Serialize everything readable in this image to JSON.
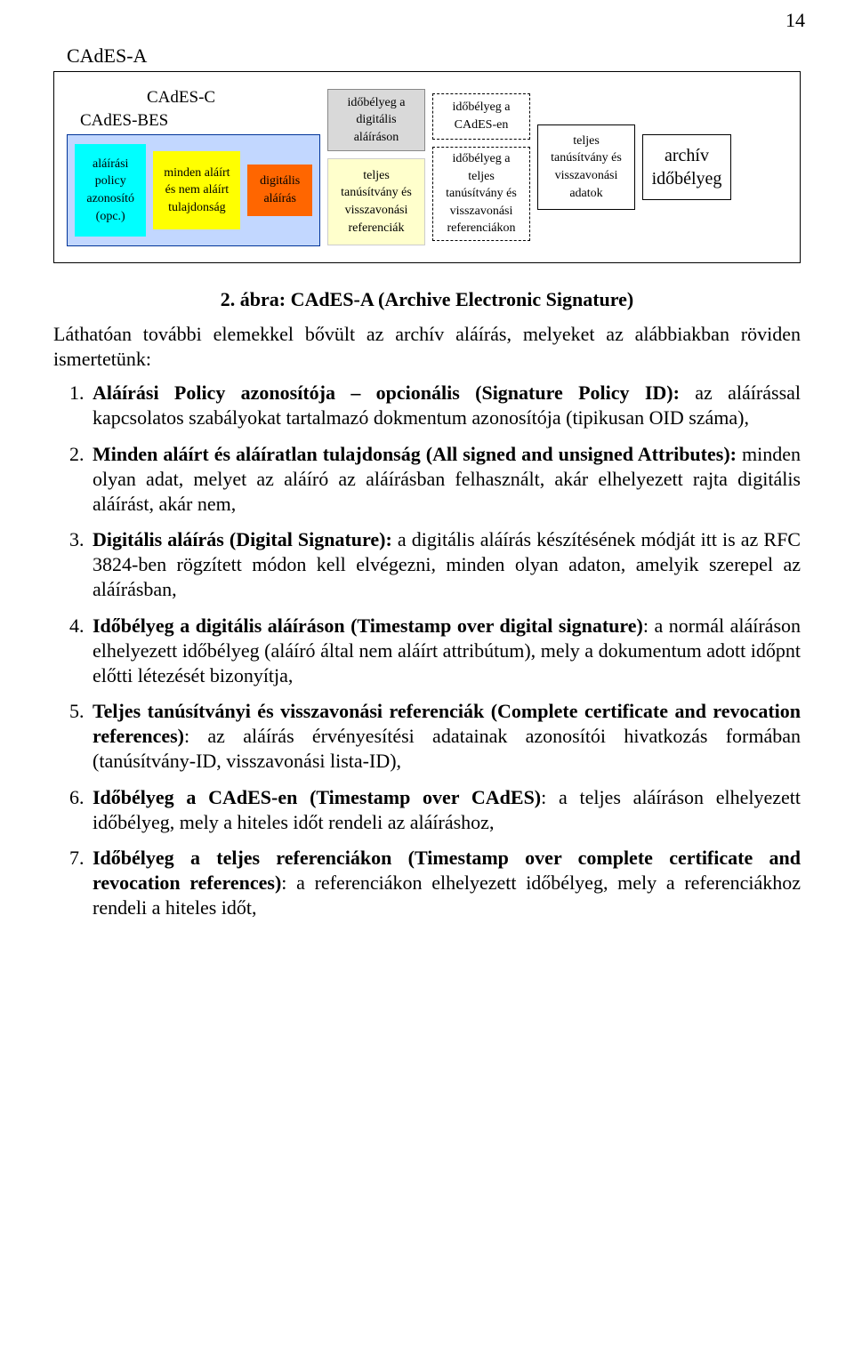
{
  "page_number": "14",
  "diagram": {
    "title_a": "CAdES-A",
    "title_c": "CAdES-C",
    "title_bes": "CAdES-BES",
    "colors": {
      "bes_bg": "#c2d7ff",
      "bes_border": "#003399",
      "policy": "#00ffff",
      "attrs": "#ffff00",
      "sig": "#ff6600",
      "ts_bg": "#d9d9d9",
      "refs_bg": "#ffffcc"
    },
    "cells": {
      "policy": "aláírási\npolicy\nazonosító\n(opc.)",
      "attrs": "minden aláírt\nés nem aláírt\ntulajdonság",
      "sig": "digitális\naláírás",
      "ts_sig": "időbélyeg a\ndigitális\naláíráson",
      "refs": "teljes\ntanúsítvány és\nvisszavonási\nreferenciák",
      "ts_cades": "időbélyeg a\nCAdES-en",
      "ts_refs": "időbélyeg a\nteljes\ntanúsítvány és\nvisszavonási\nreferenciákon",
      "full_data": "teljes\ntanúsítvány és\nvisszavonási\nadatok",
      "archive": "archív\nidőbélyeg"
    }
  },
  "figure_caption": "2. ábra: CAdES-A (Archive Electronic Signature)",
  "intro": "Láthatóan további elemekkel bővült az archív aláírás, melyeket az alábbiakban röviden ismertetünk:",
  "items": [
    {
      "bold": "Aláírási Policy azonosítója – opcionális (Signature Policy ID):",
      "rest": " az aláírással kapcsolatos szabályokat tartalmazó dokmentum azonosítója (tipikusan OID száma),"
    },
    {
      "bold": "Minden aláírt és aláíratlan tulajdonság (All signed and unsigned Attributes):",
      "rest": " minden olyan adat, melyet az aláíró az aláírásban felhasznált, akár elhelyezett rajta digitális aláírást, akár nem,"
    },
    {
      "bold": "Digitális aláírás (Digital Signature):",
      "rest": " a digitális aláírás készítésének módját itt is az RFC 3824-ben rögzített módon kell elvégezni, minden olyan adaton, amelyik szerepel az aláírásban,"
    },
    {
      "bold": "Időbélyeg a digitális aláíráson (Timestamp over digital signature)",
      "rest": ": a normál aláíráson elhelyezett időbélyeg (aláíró által nem aláírt attribútum), mely a dokumentum adott időpnt előtti létezését bizonyítja,"
    },
    {
      "bold": "Teljes tanúsítványi és visszavonási referenciák (Complete certificate and revocation references)",
      "rest": ": az aláírás érvényesítési adatainak azonosítói hivatkozás formában (tanúsítvány-ID,  visszavonási lista-ID),"
    },
    {
      "bold": "Időbélyeg a CAdES-en (Timestamp over CAdES)",
      "rest": ": a teljes aláíráson elhelyezett időbélyeg, mely a hiteles időt rendeli az aláíráshoz,"
    },
    {
      "bold": "Időbélyeg a teljes referenciákon (Timestamp over complete certificate and revocation references)",
      "rest": ": a referenciákon elhelyezett időbélyeg, mely a referenciákhoz rendeli a hiteles időt,"
    }
  ]
}
